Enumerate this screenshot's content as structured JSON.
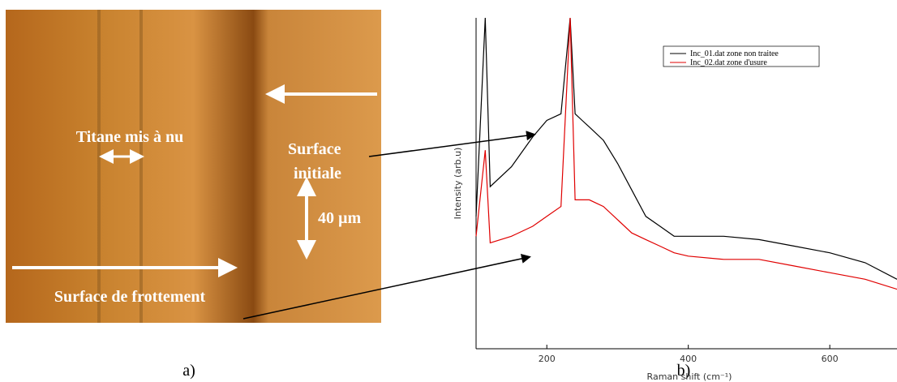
{
  "panel_a": {
    "labels": [
      "Titane mis à nu",
      "Surface",
      "initiale",
      "40 µm",
      "Surface de frottement"
    ],
    "caption": "a)"
  },
  "chart_data": {
    "type": "line",
    "caption": "b)",
    "x_label": "Raman shift (cm⁻¹)",
    "y_label": "Intensity (arb.u)",
    "x": [
      100,
      113,
      120,
      150,
      180,
      200,
      220,
      233,
      240,
      250,
      260,
      280,
      300,
      320,
      340,
      360,
      380,
      400,
      450,
      500,
      550,
      600,
      650,
      695
    ],
    "series": [
      {
        "name": "Inc_01.dat zone non traitee",
        "color": "#000000",
        "values": [
          40,
          100,
          49,
          55,
          64,
          69,
          71,
          100,
          71,
          69,
          67,
          63,
          56,
          48,
          40,
          37,
          34,
          34,
          34,
          33,
          31,
          29,
          26,
          21
        ]
      },
      {
        "name": "Inc_02.dat zone d'usure",
        "color": "#e00000",
        "values": [
          34,
          60,
          32,
          34,
          37,
          40,
          43,
          100,
          45,
          45,
          45,
          43,
          39,
          35,
          33,
          31,
          29,
          28,
          27,
          27,
          25,
          23,
          21,
          18
        ]
      }
    ],
    "xlim": [
      100,
      695
    ],
    "ylim": [
      0,
      100
    ],
    "xticks": [
      200,
      400,
      600
    ]
  }
}
